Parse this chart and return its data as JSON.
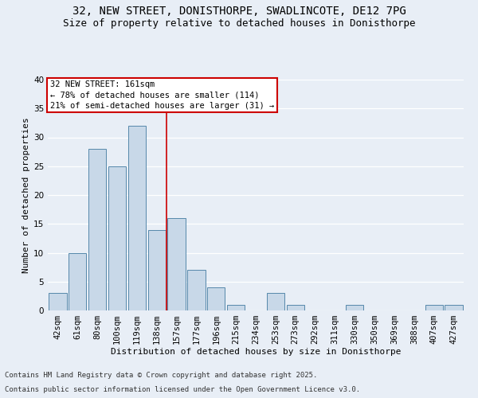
{
  "title1": "32, NEW STREET, DONISTHORPE, SWADLINCOTE, DE12 7PG",
  "title2": "Size of property relative to detached houses in Donisthorpe",
  "xlabel": "Distribution of detached houses by size in Donisthorpe",
  "ylabel": "Number of detached properties",
  "bar_labels": [
    "42sqm",
    "61sqm",
    "80sqm",
    "100sqm",
    "119sqm",
    "138sqm",
    "157sqm",
    "177sqm",
    "196sqm",
    "215sqm",
    "234sqm",
    "253sqm",
    "273sqm",
    "292sqm",
    "311sqm",
    "330sqm",
    "350sqm",
    "369sqm",
    "388sqm",
    "407sqm",
    "427sqm"
  ],
  "bar_values": [
    3,
    10,
    28,
    25,
    32,
    14,
    16,
    7,
    4,
    1,
    0,
    3,
    1,
    0,
    0,
    1,
    0,
    0,
    0,
    1,
    1
  ],
  "bar_color": "#c8d8e8",
  "bar_edge_color": "#5588aa",
  "background_color": "#e8eef6",
  "grid_color": "#ffffff",
  "vline_x": 5.5,
  "vline_color": "#cc0000",
  "annotation_text_line1": "32 NEW STREET: 161sqm",
  "annotation_text_line2": "← 78% of detached houses are smaller (114)",
  "annotation_text_line3": "21% of semi-detached houses are larger (31) →",
  "annotation_box_color": "#ffffff",
  "annotation_box_edge": "#cc0000",
  "ylim": [
    0,
    40
  ],
  "yticks": [
    0,
    5,
    10,
    15,
    20,
    25,
    30,
    35,
    40
  ],
  "footer1": "Contains HM Land Registry data © Crown copyright and database right 2025.",
  "footer2": "Contains public sector information licensed under the Open Government Licence v3.0.",
  "title_fontsize": 10,
  "subtitle_fontsize": 9,
  "axis_label_fontsize": 8,
  "tick_fontsize": 7.5,
  "annotation_fontsize": 7.5,
  "footer_fontsize": 6.5
}
